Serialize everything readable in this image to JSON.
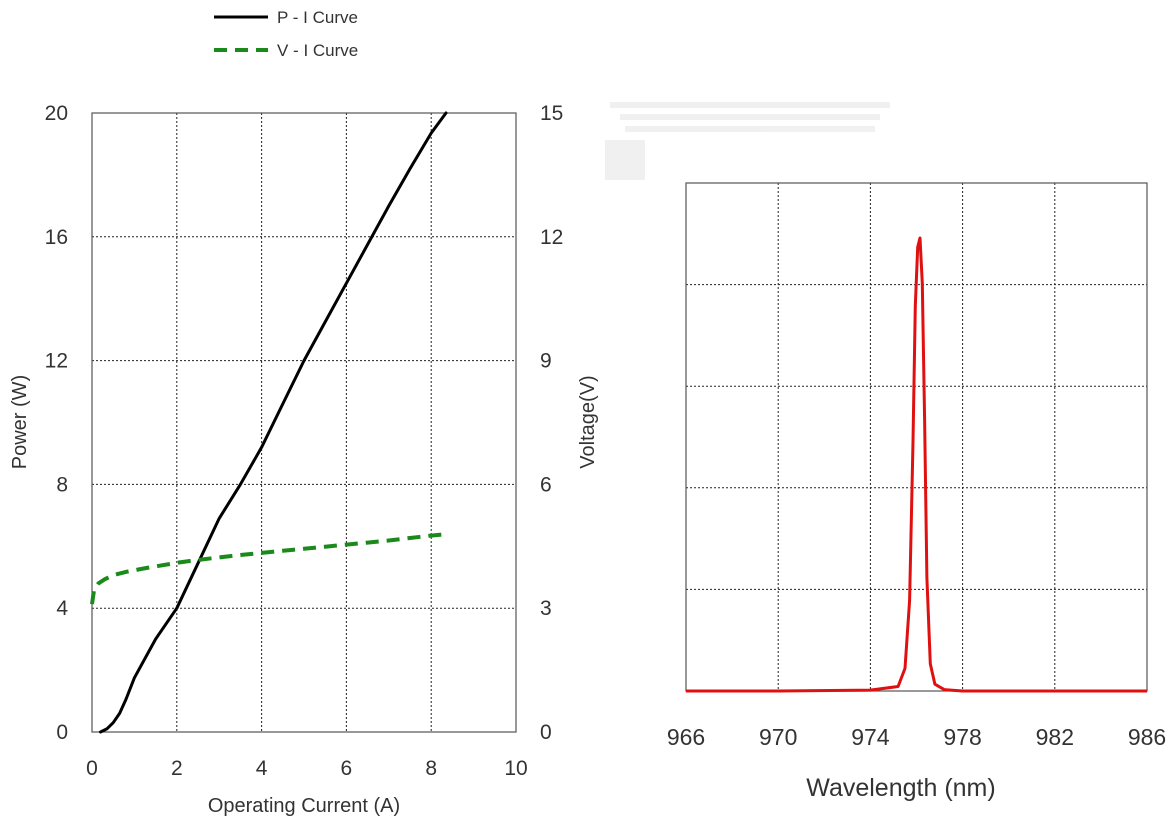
{
  "chart_data": [
    {
      "type": "line",
      "legend": {
        "placement": "top-left",
        "entries": [
          {
            "label": "P - I Curve",
            "color": "#000000",
            "style": "solid"
          },
          {
            "label": "V - I Curve",
            "color": "#1a8a1a",
            "style": "dashed"
          }
        ]
      },
      "xlabel": "Operating Current (A)",
      "ylabel_left": "Power (W)",
      "ylabel_right": "Voltage(V)",
      "xlim": [
        0,
        10
      ],
      "ylim_left": [
        0,
        20
      ],
      "ylim_right": [
        0,
        15
      ],
      "x_ticks": [
        "0",
        "2",
        "4",
        "6",
        "8",
        "10"
      ],
      "y_ticks_left": [
        "0",
        "4",
        "8",
        "12",
        "16",
        "20"
      ],
      "y_ticks_right": [
        "0",
        "3",
        "6",
        "9",
        "12",
        "15"
      ],
      "grid": true,
      "series": [
        {
          "name": "P - I Curve",
          "axis": "left",
          "color": "#000000",
          "x": [
            0.2,
            0.35,
            0.5,
            0.65,
            0.8,
            1.0,
            1.5,
            2.0,
            2.5,
            3.0,
            3.5,
            4.0,
            4.5,
            5.0,
            5.5,
            6.0,
            6.5,
            7.0,
            7.5,
            8.0,
            8.35
          ],
          "y": [
            0.0,
            0.1,
            0.3,
            0.6,
            1.05,
            1.75,
            3.0,
            4.0,
            5.45,
            6.9,
            8.0,
            9.2,
            10.6,
            12.0,
            13.25,
            14.5,
            15.75,
            17.0,
            18.2,
            19.35,
            20.0
          ]
        },
        {
          "name": "V - I Curve",
          "axis": "right",
          "color": "#1a8a1a",
          "x": [
            0.0,
            0.05,
            0.15,
            0.3,
            0.5,
            0.8,
            1.2,
            1.6,
            2.0,
            2.5,
            3.0,
            3.5,
            4.0,
            4.5,
            5.0,
            5.5,
            6.0,
            6.5,
            7.0,
            7.5,
            8.0,
            8.4
          ],
          "y": [
            3.1,
            3.45,
            3.6,
            3.7,
            3.8,
            3.88,
            3.96,
            4.03,
            4.1,
            4.17,
            4.23,
            4.29,
            4.34,
            4.39,
            4.44,
            4.49,
            4.54,
            4.59,
            4.64,
            4.7,
            4.76,
            4.8
          ]
        }
      ]
    },
    {
      "type": "line",
      "xlabel": "Wavelength (nm)",
      "xlim": [
        966,
        986
      ],
      "x_ticks": [
        "966",
        "970",
        "974",
        "978",
        "982",
        "986"
      ],
      "ylim": [
        0,
        1
      ],
      "y_ticks": [],
      "grid": true,
      "series": [
        {
          "color": "#e01010",
          "x": [
            966,
            970,
            974,
            975.2,
            975.5,
            975.7,
            975.85,
            975.95,
            976.05,
            976.15,
            976.25,
            976.35,
            976.45,
            976.6,
            976.8,
            977.2,
            978,
            982,
            986
          ],
          "y": [
            0.0,
            0.0,
            0.002,
            0.01,
            0.05,
            0.2,
            0.55,
            0.85,
            0.98,
            1.0,
            0.9,
            0.6,
            0.25,
            0.06,
            0.015,
            0.003,
            0.0,
            0.0,
            0.0
          ]
        }
      ]
    }
  ]
}
